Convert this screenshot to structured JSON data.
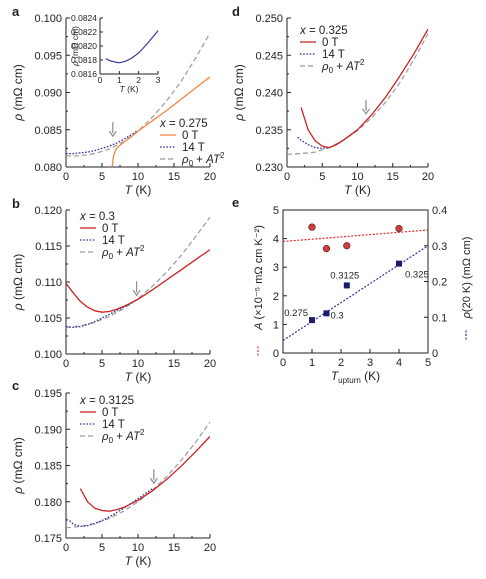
{
  "colors": {
    "zero_field_a": "#f08a45",
    "zero_field": "#cc2222",
    "fourteen_T": "#2d2d9e",
    "fit": "#9a9a9a",
    "arrow": "#8c8c8c",
    "A_marker": "#c84040",
    "A_fit": "#e02b2b",
    "rho20_marker": "#1c1c6c",
    "rho20_fit": "#2e2e9e"
  },
  "panels": [
    {
      "id": "a",
      "label": "a",
      "legend_title": "x = 0.275",
      "legend": {
        "zero": "0 T",
        "fourteen": "14 T",
        "fit_prefix": "ρ",
        "fit_sub": "0",
        "fit_mid": " + ",
        "fit_italic": "AT",
        "fit_sup": "2"
      },
      "xlabel": "T (K)",
      "ylabel": "ρ (mΩ cm)"
    },
    {
      "id": "b",
      "label": "b",
      "legend_title": "x = 0.3",
      "legend": {
        "zero": "0 T",
        "fourteen": "14 T",
        "fit_prefix": "ρ",
        "fit_sub": "0",
        "fit_mid": " + ",
        "fit_italic": "AT",
        "fit_sup": "2"
      },
      "xlabel": "T (K)",
      "ylabel": "ρ (mΩ cm)"
    },
    {
      "id": "c",
      "label": "c",
      "legend_title": "x = 0.3125",
      "legend": {
        "zero": "0 T",
        "fourteen": "14 T",
        "fit_prefix": "ρ",
        "fit_sub": "0",
        "fit_mid": " + ",
        "fit_italic": "AT",
        "fit_sup": "2"
      },
      "xlabel": "T (K)",
      "ylabel": "ρ (mΩ cm)"
    },
    {
      "id": "d",
      "label": "d",
      "legend_title": "x = 0.325",
      "legend": {
        "zero": "0 T",
        "fourteen": "14 T",
        "fit_prefix": "ρ",
        "fit_sub": "0",
        "fit_mid": " + ",
        "fit_italic": "AT",
        "fit_sup": "2"
      },
      "xlabel": "T (K)",
      "ylabel": "ρ (mΩ cm)"
    },
    {
      "id": "e",
      "label": "e",
      "xlabel": "T_upturn (K)",
      "ylabel_left": "A (×10⁻⁵ mΩ cm K⁻²)",
      "ylabel_right": "ρ(20 K) (mΩ cm)",
      "point_labels": [
        "0.275",
        "0.3",
        "0.3125",
        "0.325"
      ]
    }
  ],
  "chart_data": [
    {
      "panel": "a",
      "type": "line",
      "xlim": [
        0,
        20
      ],
      "ylim": [
        0.08,
        0.1
      ],
      "xticks": [
        0,
        5,
        10,
        15,
        20
      ],
      "yticks": [
        0.08,
        0.085,
        0.09,
        0.095,
        0.1
      ],
      "series": [
        {
          "name": "0 T",
          "x": [
            6.4,
            6.6,
            7,
            8,
            9,
            10,
            12,
            14,
            16,
            18,
            20
          ],
          "y": [
            0.08,
            0.0815,
            0.0825,
            0.0833,
            0.084,
            0.0848,
            0.0862,
            0.0876,
            0.0891,
            0.0906,
            0.0921
          ]
        },
        {
          "name": "14 T",
          "x": [
            0,
            1,
            2,
            3,
            4,
            5,
            6,
            7,
            8,
            9,
            10
          ],
          "y": [
            0.0818,
            0.0818,
            0.0819,
            0.082,
            0.0822,
            0.0825,
            0.0828,
            0.0832,
            0.0837,
            0.0843,
            0.0849
          ]
        },
        {
          "name": "ρ0 + AT2",
          "x": [
            0,
            2,
            4,
            6,
            8,
            10,
            12,
            14,
            16,
            18,
            20
          ],
          "y": [
            0.0815,
            0.0815,
            0.0818,
            0.0824,
            0.0834,
            0.0848,
            0.0867,
            0.0889,
            0.0915,
            0.0946,
            0.098
          ]
        }
      ],
      "arrow_at": {
        "x": 6.5,
        "y": 0.0836
      },
      "inset": {
        "type": "line",
        "xlim": [
          0,
          3
        ],
        "ylim": [
          0.0816,
          0.0824
        ],
        "xticks": [
          0,
          1,
          2,
          3
        ],
        "yticks": [
          0.0816,
          0.0818,
          0.082,
          0.0822,
          0.0824
        ],
        "xlabel": "T (K)",
        "ylabel": "ρ (mΩ cm)",
        "series": [
          {
            "name": "14 T",
            "x": [
              0.3,
              0.5,
              0.8,
              1.0,
              1.3,
              1.6,
              2.0,
              2.4,
              2.8,
              3.0
            ],
            "y": [
              0.08182,
              0.08179,
              0.08177,
              0.08176,
              0.08178,
              0.08182,
              0.0819,
              0.08202,
              0.08215,
              0.08222
            ]
          }
        ]
      }
    },
    {
      "panel": "b",
      "type": "line",
      "xlim": [
        0,
        20
      ],
      "ylim": [
        0.1,
        0.12
      ],
      "xticks": [
        0,
        5,
        10,
        15,
        20
      ],
      "yticks": [
        0.1,
        0.105,
        0.11,
        0.115,
        0.12
      ],
      "series": [
        {
          "name": "0 T",
          "x": [
            0,
            1,
            2,
            3,
            4,
            5,
            6,
            7,
            8,
            10,
            12,
            14,
            16,
            18,
            20
          ],
          "y": [
            0.1098,
            0.1085,
            0.1073,
            0.1065,
            0.106,
            0.1058,
            0.1059,
            0.1062,
            0.1066,
            0.1076,
            0.1089,
            0.1103,
            0.1117,
            0.1131,
            0.1145
          ]
        },
        {
          "name": "14 T",
          "x": [
            0,
            1,
            2,
            3,
            4,
            5,
            6,
            7,
            8,
            9,
            10
          ],
          "y": [
            0.1038,
            0.1037,
            0.1038,
            0.1041,
            0.1045,
            0.105,
            0.1055,
            0.106,
            0.1065,
            0.107,
            0.1076
          ]
        },
        {
          "name": "ρ0 + AT2",
          "x": [
            0,
            2,
            4,
            6,
            8,
            10,
            12,
            14,
            16,
            18,
            20
          ],
          "y": [
            0.1037,
            0.1039,
            0.1044,
            0.1052,
            0.1063,
            0.1077,
            0.1094,
            0.1114,
            0.1137,
            0.1163,
            0.119
          ]
        }
      ],
      "arrow_at": {
        "x": 9.8,
        "y": 0.1076
      }
    },
    {
      "panel": "c",
      "type": "line",
      "xlim": [
        0,
        20
      ],
      "ylim": [
        0.175,
        0.195
      ],
      "xticks": [
        0,
        5,
        10,
        15,
        20
      ],
      "yticks": [
        0.175,
        0.18,
        0.185,
        0.19,
        0.195
      ],
      "series": [
        {
          "name": "0 T",
          "x": [
            2,
            3,
            4,
            5,
            6,
            7,
            8,
            10,
            12,
            14,
            16,
            18,
            20
          ],
          "y": [
            0.1818,
            0.18,
            0.1791,
            0.1788,
            0.1787,
            0.1789,
            0.1792,
            0.1802,
            0.1815,
            0.1831,
            0.1849,
            0.1869,
            0.189
          ]
        },
        {
          "name": "14 T",
          "x": [
            0.5,
            1,
            2,
            3,
            4,
            5,
            6,
            8,
            10,
            12
          ],
          "y": [
            0.1774,
            0.1769,
            0.1766,
            0.1767,
            0.177,
            0.1774,
            0.1779,
            0.1791,
            0.1804,
            0.1818
          ]
        },
        {
          "name": "ρ0 + AT2",
          "x": [
            0,
            2,
            4,
            6,
            8,
            10,
            12,
            14,
            16,
            18,
            20
          ],
          "y": [
            0.1764,
            0.1766,
            0.177,
            0.1777,
            0.1787,
            0.18,
            0.1816,
            0.1835,
            0.1857,
            0.1882,
            0.191
          ]
        }
      ],
      "arrow_at": {
        "x": 12.2,
        "y": 0.182
      }
    },
    {
      "panel": "d",
      "type": "line",
      "xlim": [
        0,
        20
      ],
      "ylim": [
        0.23,
        0.25
      ],
      "xticks": [
        0,
        5,
        10,
        15,
        20
      ],
      "yticks": [
        0.23,
        0.235,
        0.24,
        0.245,
        0.25
      ],
      "series": [
        {
          "name": "0 T",
          "x": [
            2,
            3,
            4,
            5,
            6,
            7,
            8,
            10,
            12,
            14,
            16,
            18,
            20
          ],
          "y": [
            0.238,
            0.235,
            0.2335,
            0.2328,
            0.2326,
            0.233,
            0.2336,
            0.235,
            0.237,
            0.2394,
            0.2422,
            0.2452,
            0.2485
          ]
        },
        {
          "name": "14 T",
          "x": [
            1.5,
            2,
            3,
            4,
            5,
            6,
            7,
            8,
            10
          ],
          "y": [
            0.234,
            0.2336,
            0.233,
            0.2326,
            0.2325,
            0.2326,
            0.233,
            0.2336,
            0.235
          ]
        },
        {
          "name": "ρ0 + AT2",
          "x": [
            0,
            2,
            4,
            6,
            8,
            10,
            12,
            14,
            16,
            18,
            20
          ],
          "y": [
            0.2317,
            0.2318,
            0.232,
            0.2326,
            0.2336,
            0.2349,
            0.2366,
            0.2387,
            0.2413,
            0.2444,
            0.2479
          ]
        }
      ],
      "arrow_at": {
        "x": 11.2,
        "y": 0.2366
      }
    },
    {
      "panel": "e",
      "type": "scatter",
      "xlabel": "T_upturn (K)",
      "xlim": [
        0,
        5
      ],
      "xticks": [
        0,
        1,
        2,
        3,
        4,
        5
      ],
      "left_axis": {
        "label": "A (×10⁻⁵ mΩ cm K⁻²)",
        "ylim": [
          0,
          5
        ],
        "yticks": [
          0,
          1,
          2,
          3,
          4,
          5
        ]
      },
      "right_axis": {
        "label": "ρ(20 K) (mΩ cm)",
        "ylim": [
          0,
          0.4
        ],
        "yticks": [
          0,
          0.1,
          0.2,
          0.3,
          0.4
        ]
      },
      "series": [
        {
          "name": "A",
          "axis": "left",
          "x": [
            1.0,
            1.5,
            2.2,
            4.0
          ],
          "y": [
            4.4,
            3.65,
            3.75,
            4.35
          ],
          "fit": {
            "x": [
              0,
              5
            ],
            "y": [
              3.9,
              4.3
            ]
          }
        },
        {
          "name": "ρ(20 K)",
          "axis": "right",
          "x": [
            1.0,
            1.5,
            2.2,
            4.0
          ],
          "y": [
            0.092,
            0.111,
            0.189,
            0.25
          ],
          "labels": [
            "0.275",
            "0.3",
            "0.3125",
            "0.325"
          ],
          "fit": {
            "x": [
              0,
              5
            ],
            "y": [
              0.035,
              0.3
            ]
          }
        }
      ]
    }
  ]
}
